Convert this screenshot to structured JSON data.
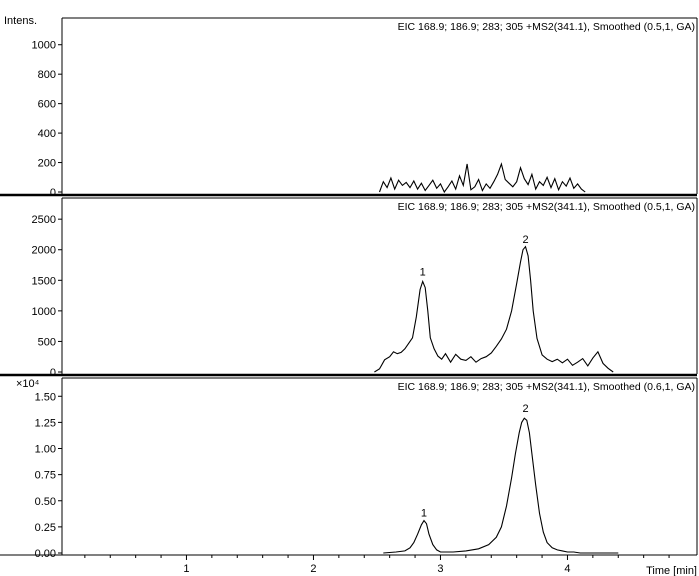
{
  "y_axis_label": "Intens.",
  "x_axis_label": "Time [min]",
  "x_ticks": [
    "1",
    "2",
    "3",
    "4"
  ],
  "chart_data": [
    {
      "type": "line",
      "title": "EIC 168.9; 186.9; 283; 305 +MS2(341.1), Smoothed (0.5,1, GA)",
      "ylim": [
        0,
        1100
      ],
      "yticks": [
        0,
        200,
        400,
        600,
        800,
        1000
      ],
      "ytick_labels": [
        "0",
        "200",
        "400",
        "600",
        "800",
        "1000"
      ],
      "xlim": [
        0.02,
        5.02
      ],
      "series": [
        {
          "x": [
            2.52,
            2.55,
            2.58,
            2.61,
            2.64,
            2.67,
            2.7,
            2.73,
            2.76,
            2.79,
            2.82,
            2.85,
            2.88,
            2.91,
            2.94,
            2.97,
            3.0,
            3.03,
            3.06,
            3.09,
            3.12,
            3.15,
            3.18,
            3.21,
            3.24,
            3.27,
            3.3,
            3.33,
            3.36,
            3.39,
            3.42,
            3.45,
            3.48,
            3.51,
            3.54,
            3.57,
            3.6,
            3.63,
            3.66,
            3.69,
            3.72,
            3.75,
            3.78,
            3.81,
            3.84,
            3.87,
            3.9,
            3.93,
            3.96,
            3.99,
            4.02,
            4.05,
            4.08,
            4.11,
            4.14
          ],
          "y": [
            0,
            70,
            30,
            95,
            20,
            80,
            45,
            65,
            30,
            75,
            20,
            60,
            10,
            45,
            80,
            25,
            55,
            0,
            35,
            75,
            20,
            110,
            45,
            190,
            15,
            35,
            85,
            10,
            55,
            25,
            70,
            120,
            190,
            85,
            60,
            35,
            70,
            165,
            90,
            50,
            120,
            20,
            70,
            45,
            100,
            30,
            90,
            15,
            70,
            40,
            95,
            25,
            55,
            20,
            0
          ]
        }
      ]
    },
    {
      "type": "line",
      "title": "EIC 168.9; 186.9; 283; 305 +MS2(341.1), Smoothed (0.5,1, GA)",
      "ylim": [
        0,
        2650
      ],
      "yticks": [
        0,
        500,
        1000,
        1500,
        2000,
        2500
      ],
      "ytick_labels": [
        "0",
        "500",
        "1000",
        "1500",
        "2000",
        "2500"
      ],
      "xlim": [
        0.02,
        5.02
      ],
      "annotations": [
        {
          "label": "1",
          "x": 2.86,
          "y": 1580
        },
        {
          "label": "2",
          "x": 3.67,
          "y": 2110
        }
      ],
      "series": [
        {
          "x": [
            2.48,
            2.52,
            2.56,
            2.6,
            2.63,
            2.66,
            2.69,
            2.72,
            2.75,
            2.78,
            2.81,
            2.84,
            2.86,
            2.88,
            2.9,
            2.92,
            2.95,
            2.98,
            3.01,
            3.04,
            3.08,
            3.12,
            3.16,
            3.2,
            3.24,
            3.28,
            3.32,
            3.36,
            3.4,
            3.44,
            3.48,
            3.52,
            3.56,
            3.6,
            3.63,
            3.65,
            3.67,
            3.69,
            3.71,
            3.73,
            3.76,
            3.8,
            3.84,
            3.88,
            3.92,
            3.96,
            4.0,
            4.04,
            4.08,
            4.12,
            4.16,
            4.2,
            4.24,
            4.28,
            4.32,
            4.36
          ],
          "y": [
            0,
            50,
            200,
            250,
            330,
            300,
            320,
            380,
            470,
            560,
            900,
            1350,
            1480,
            1380,
            1000,
            560,
            380,
            260,
            210,
            300,
            160,
            290,
            210,
            190,
            250,
            160,
            220,
            250,
            310,
            420,
            540,
            700,
            1000,
            1450,
            1800,
            2000,
            2050,
            1900,
            1500,
            1000,
            550,
            280,
            210,
            170,
            210,
            150,
            210,
            110,
            160,
            220,
            100,
            230,
            330,
            140,
            60,
            0
          ]
        }
      ]
    },
    {
      "type": "line",
      "title": "EIC 168.9; 186.9; 283; 305 +MS2(341.1), Smoothed (0.6,1, GA)",
      "y_multiplier": "×10⁴",
      "ylim": [
        0,
        1.56
      ],
      "yticks": [
        0.0,
        0.25,
        0.5,
        0.75,
        1.0,
        1.25,
        1.5
      ],
      "ytick_labels": [
        "0.00",
        "0.25",
        "0.50",
        "0.75",
        "1.00",
        "1.25",
        "1.50"
      ],
      "xlim": [
        0.02,
        5.02
      ],
      "annotations": [
        {
          "label": "1",
          "x": 2.87,
          "y": 0.35
        },
        {
          "label": "2",
          "x": 3.67,
          "y": 1.35
        }
      ],
      "series": [
        {
          "x": [
            2.55,
            2.65,
            2.72,
            2.76,
            2.79,
            2.82,
            2.85,
            2.87,
            2.89,
            2.91,
            2.94,
            2.97,
            3.0,
            3.1,
            3.2,
            3.3,
            3.38,
            3.44,
            3.48,
            3.52,
            3.56,
            3.59,
            3.62,
            3.64,
            3.66,
            3.68,
            3.7,
            3.72,
            3.75,
            3.78,
            3.81,
            3.84,
            3.88,
            3.92,
            3.96,
            4.0,
            4.05,
            4.1,
            4.2,
            4.3,
            4.4
          ],
          "y": [
            0.0,
            0.01,
            0.02,
            0.05,
            0.1,
            0.18,
            0.27,
            0.31,
            0.28,
            0.18,
            0.08,
            0.03,
            0.01,
            0.01,
            0.02,
            0.04,
            0.08,
            0.15,
            0.25,
            0.45,
            0.72,
            0.95,
            1.15,
            1.25,
            1.29,
            1.27,
            1.15,
            0.95,
            0.65,
            0.38,
            0.2,
            0.1,
            0.05,
            0.03,
            0.02,
            0.01,
            0.01,
            0.0,
            0.0,
            0.0,
            0.0
          ]
        }
      ]
    }
  ]
}
